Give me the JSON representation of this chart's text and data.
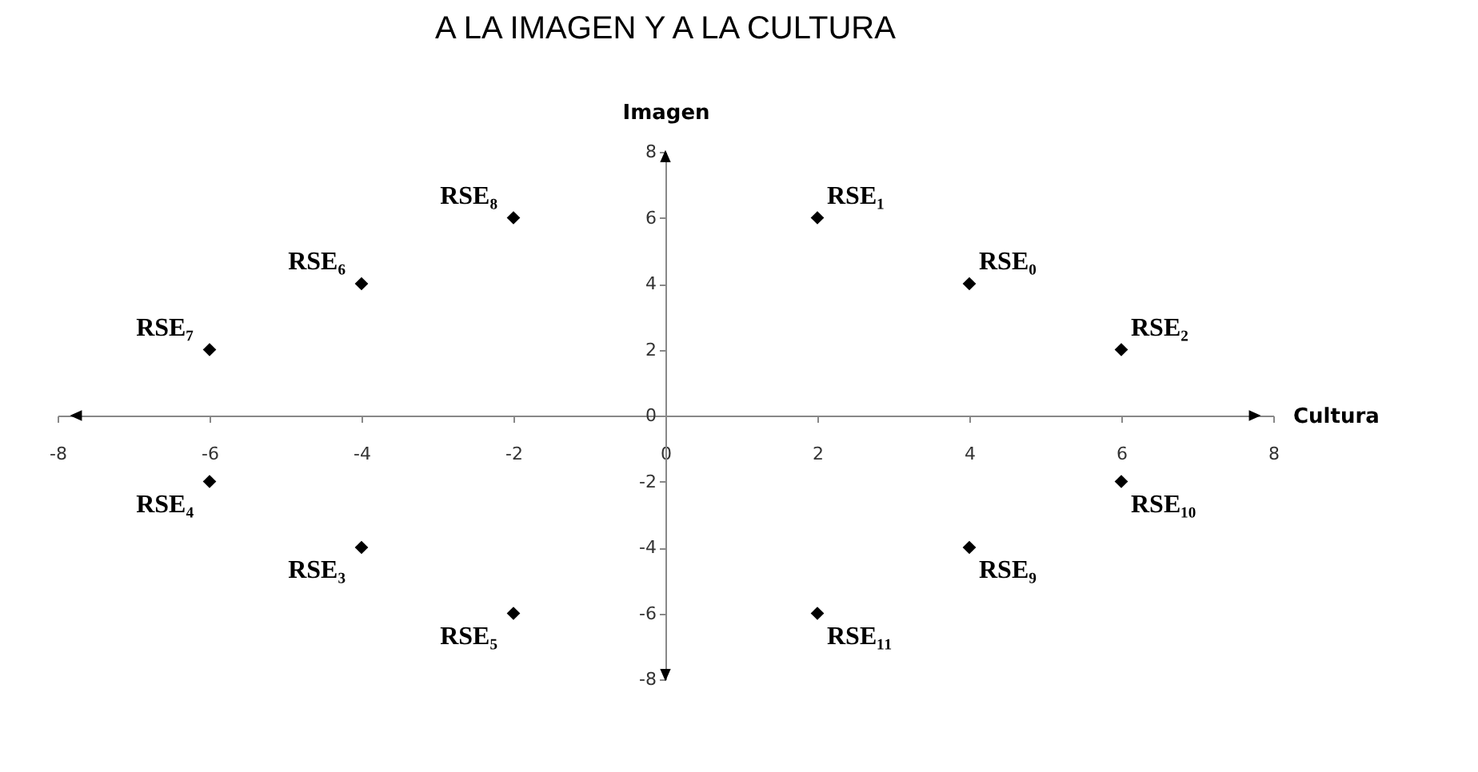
{
  "chart_data": {
    "type": "scatter",
    "title": "A LA IMAGEN Y A LA CULTURA",
    "xlabel": "Cultura",
    "ylabel": "Imagen",
    "x": [
      4,
      2,
      6,
      -4,
      -6,
      -2,
      -4,
      -6,
      -2,
      4,
      6,
      2
    ],
    "series": [
      {
        "color": "#000000",
        "values": [
          4,
          6,
          2,
          -4,
          -2,
          -6,
          4,
          2,
          6,
          -4,
          -2,
          -6
        ]
      }
    ],
    "marker": "diamond",
    "xlim": [
      -8,
      8
    ],
    "ylim": [
      -8,
      8
    ],
    "xticks": [
      -8,
      -6,
      -4,
      -2,
      0,
      2,
      4,
      6,
      8
    ],
    "yticks": [
      -8,
      -6,
      -4,
      -2,
      0,
      2,
      4,
      6,
      8
    ],
    "annotations": [
      {
        "text": "RSE₀",
        "x": 4,
        "y": 4
      },
      {
        "text": "RSE₁",
        "x": 2,
        "y": 6
      },
      {
        "text": "RSE₂",
        "x": 6,
        "y": 2
      },
      {
        "text": "RSE₃",
        "x": -4,
        "y": -4
      },
      {
        "text": "RSE₄",
        "x": -6,
        "y": -2
      },
      {
        "text": "RSE₅",
        "x": -2,
        "y": -6
      },
      {
        "text": "RSE₆",
        "x": -4,
        "y": 4
      },
      {
        "text": "RSE₇",
        "x": -6,
        "y": 2
      },
      {
        "text": "RSE₈",
        "x": -2,
        "y": 6
      },
      {
        "text": "RSE₉",
        "x": 4,
        "y": -4
      },
      {
        "text": "RSE₁₀",
        "x": 6,
        "y": -2
      },
      {
        "text": "RSE₁₁",
        "x": 2,
        "y": -6
      }
    ]
  }
}
